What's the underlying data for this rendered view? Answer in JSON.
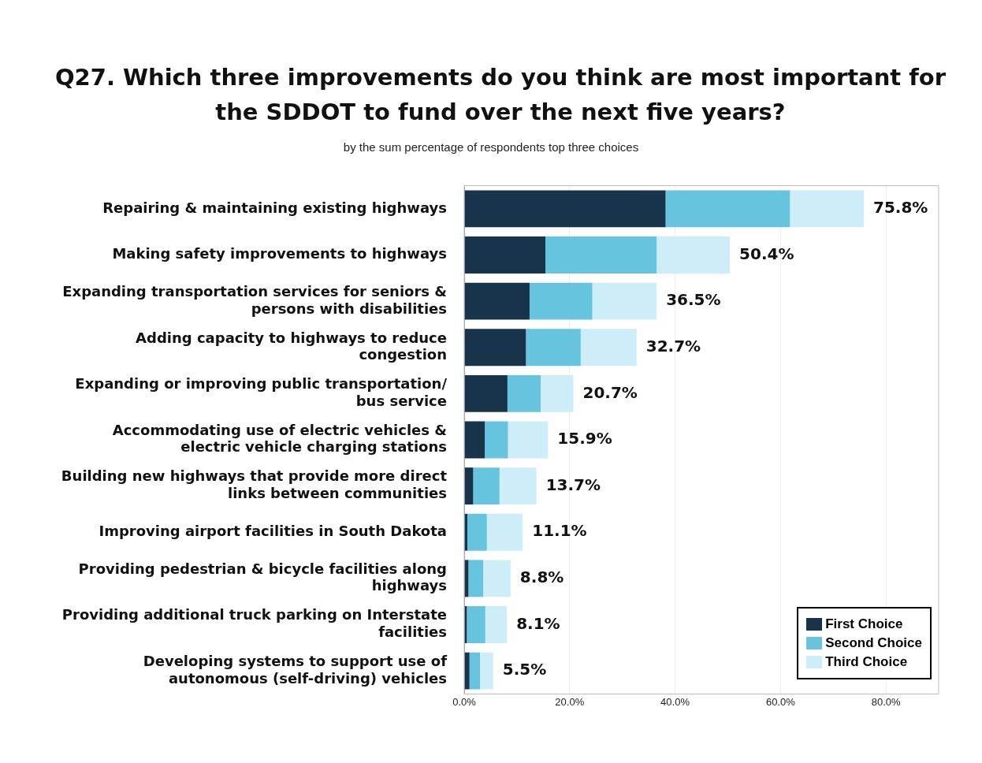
{
  "chart_data": {
    "type": "bar",
    "orientation": "horizontal",
    "stacked": true,
    "title": "Q27. Which three improvements do you think are most important for the SDDOT to fund over the next five years?",
    "subtitle": "by the sum percentage of respondents top three choices",
    "categories": [
      "Repairing & maintaining existing highways",
      "Making safety improvements to highways",
      "Expanding transportation services for seniors & persons with disabilities",
      "Adding capacity to highways to reduce congestion",
      "Expanding or improving public transportation/ bus service",
      "Accommodating use of electric vehicles & electric vehicle charging stations",
      "Building new highways that provide more direct links between communities",
      "Improving airport facilities in South Dakota",
      "Providing pedestrian & bicycle facilities along highways",
      "Providing additional truck parking on Interstate facilities",
      "Developing systems to support use of autonomous (self-driving) vehicles"
    ],
    "series": [
      {
        "name": "First Choice",
        "color": "#17344b",
        "values": [
          38.2,
          15.4,
          12.4,
          11.7,
          8.2,
          3.9,
          1.7,
          0.6,
          0.8,
          0.5,
          1.0
        ]
      },
      {
        "name": "Second Choice",
        "color": "#67c4de",
        "values": [
          23.6,
          21.1,
          11.9,
          10.4,
          6.3,
          4.4,
          5.0,
          3.7,
          2.8,
          3.5,
          2.0
        ]
      },
      {
        "name": "Third Choice",
        "color": "#cdeef8",
        "values": [
          14.0,
          13.9,
          12.2,
          10.6,
          6.2,
          7.6,
          7.0,
          6.8,
          5.2,
          4.1,
          2.5
        ]
      }
    ],
    "totals": [
      "75.8%",
      "50.4%",
      "36.5%",
      "32.7%",
      "20.7%",
      "15.9%",
      "13.7%",
      "11.1%",
      "8.8%",
      "8.1%",
      "5.5%"
    ],
    "xlim": [
      0,
      90
    ],
    "xticks": [
      {
        "value": 0,
        "label": "0.0%"
      },
      {
        "value": 20,
        "label": "20.0%"
      },
      {
        "value": 40,
        "label": "40.0%"
      },
      {
        "value": 60,
        "label": "60.0%"
      },
      {
        "value": 80,
        "label": "80.0%"
      }
    ],
    "grid": "x",
    "legend": "bottom right"
  }
}
